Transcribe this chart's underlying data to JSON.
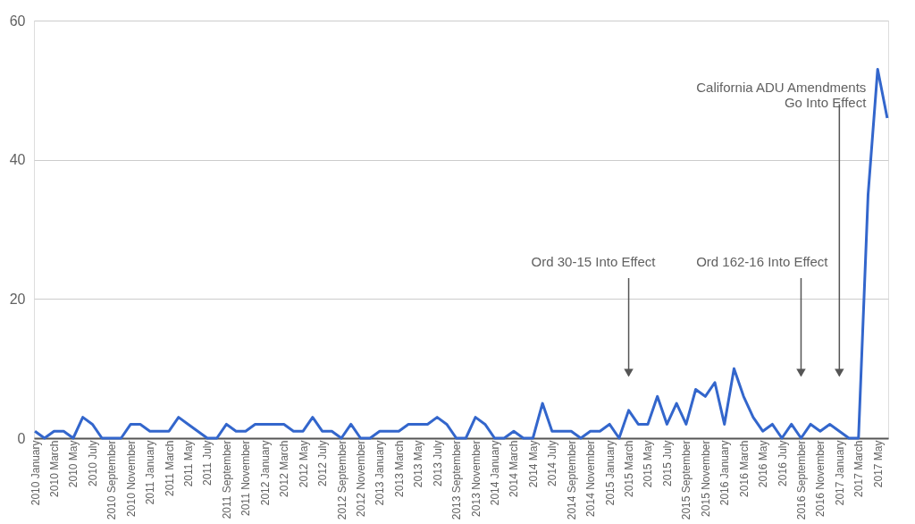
{
  "chart_data": {
    "type": "line",
    "categories": [
      "2010 January",
      null,
      "2010 March",
      null,
      "2010 May",
      null,
      "2010 July",
      null,
      "2010 September",
      null,
      "2010 November",
      null,
      "2011 January",
      null,
      "2011 March",
      null,
      "2011 May",
      null,
      "2011 July",
      null,
      "2011 September",
      null,
      "2011 November",
      null,
      "2012 January",
      null,
      "2012 March",
      null,
      "2012 May",
      null,
      "2012 July",
      null,
      "2012 September",
      null,
      "2012 November",
      null,
      "2013 January",
      null,
      "2013 March",
      null,
      "2013 May",
      null,
      "2013 July",
      null,
      "2013 September",
      null,
      "2013 November",
      null,
      "2014 January",
      null,
      "2014 March",
      null,
      "2014 May",
      null,
      "2014 July",
      null,
      "2014 September",
      null,
      "2014 November",
      null,
      "2015 January",
      null,
      "2015 March",
      null,
      "2015 May",
      null,
      "2015 July",
      null,
      "2015 September",
      null,
      "2015 November",
      null,
      "2016 January",
      null,
      "2016 March",
      null,
      "2016 May",
      null,
      "2016 July",
      null,
      "2016 September",
      null,
      "2016 November",
      null,
      "2017 January",
      null,
      "2017 March",
      null,
      "2017 May",
      null
    ],
    "series": [
      {
        "color": "#3366cc",
        "values": [
          1,
          0,
          1,
          1,
          0,
          3,
          2,
          0,
          0,
          0,
          2,
          2,
          1,
          1,
          1,
          3,
          2,
          1,
          0,
          0,
          2,
          1,
          1,
          2,
          2,
          2,
          2,
          1,
          1,
          3,
          1,
          1,
          0,
          2,
          0,
          0,
          1,
          1,
          1,
          2,
          2,
          2,
          3,
          2,
          0,
          0,
          3,
          2,
          0,
          0,
          1,
          0,
          0,
          5,
          1,
          1,
          1,
          0,
          1,
          1,
          2,
          0,
          4,
          2,
          2,
          6,
          2,
          5,
          2,
          7,
          6,
          8,
          2,
          10,
          6,
          3,
          1,
          2,
          0,
          2,
          0,
          2,
          1,
          2,
          1,
          0,
          0,
          35,
          53,
          46
        ]
      }
    ],
    "ylim": [
      0,
      60
    ],
    "yticks": [
      0,
      20,
      40,
      60
    ],
    "grid": "y",
    "marker": "none",
    "line_style": "solid",
    "annotations": [
      "Ord 30-15 Into Effect",
      "Ord 162-16 Into Effect",
      "California ADU Amendments\nGo Into Effect"
    ]
  }
}
